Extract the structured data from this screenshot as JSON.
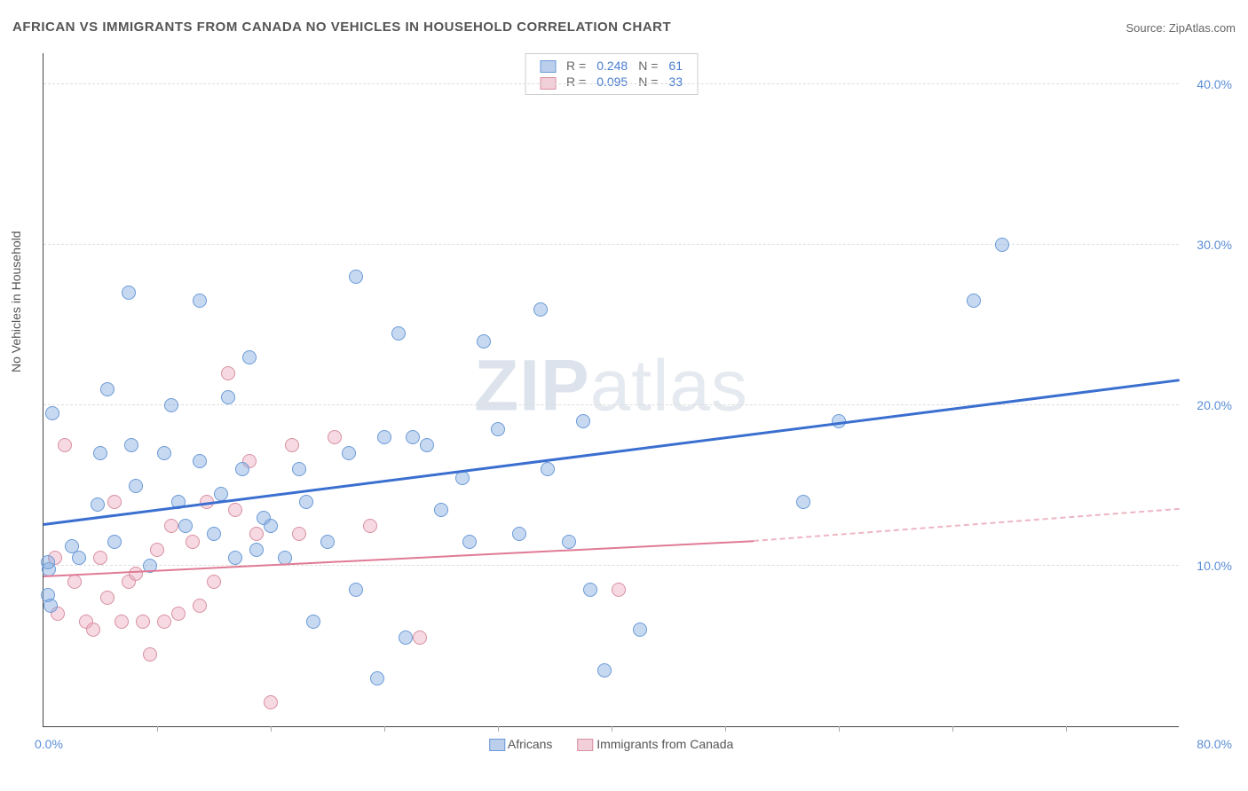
{
  "title": "AFRICAN VS IMMIGRANTS FROM CANADA NO VEHICLES IN HOUSEHOLD CORRELATION CHART",
  "source_label": "Source: ZipAtlas.com",
  "y_axis_label": "No Vehicles in Household",
  "watermark": {
    "bold": "ZIP",
    "rest": "atlas"
  },
  "chart": {
    "type": "scatter",
    "x_range": [
      0,
      80
    ],
    "y_range": [
      0,
      42
    ],
    "y_ticks": [
      10,
      20,
      30,
      40
    ],
    "y_tick_labels": [
      "10.0%",
      "20.0%",
      "30.0%",
      "40.0%"
    ],
    "x_ticks": [
      8,
      16,
      24,
      32,
      40,
      48,
      56,
      64,
      72
    ],
    "x_min_label": "0.0%",
    "x_max_label": "80.0%",
    "marker_radius": 8,
    "background_color": "#ffffff",
    "grid_color": "#dddddd",
    "axis_color": "#444444",
    "tick_label_color": "#5a8dd6"
  },
  "legend_top": {
    "rows": [
      {
        "swatch": "blue",
        "r_label": "R =",
        "r_value": "0.248",
        "n_label": "N =",
        "n_value": "61"
      },
      {
        "swatch": "pink",
        "r_label": "R =",
        "r_value": "0.095",
        "n_label": "N =",
        "n_value": "33"
      }
    ]
  },
  "legend_bottom": {
    "items": [
      {
        "swatch": "blue",
        "label": "Africans"
      },
      {
        "swatch": "pink",
        "label": "Immigrants from Canada"
      }
    ]
  },
  "series": {
    "blue": {
      "fill": "rgba(130,170,225,0.45)",
      "stroke": "#6a9ad8",
      "points": [
        [
          0.3,
          8.2
        ],
        [
          0.4,
          9.8
        ],
        [
          0.3,
          10.2
        ],
        [
          0.6,
          19.5
        ],
        [
          2.0,
          11.2
        ],
        [
          3.8,
          13.8
        ],
        [
          4.5,
          21.0
        ],
        [
          4.0,
          17.0
        ],
        [
          6.0,
          27.0
        ],
        [
          6.2,
          17.5
        ],
        [
          6.5,
          15.0
        ],
        [
          8.5,
          17.0
        ],
        [
          9.5,
          14.0
        ],
        [
          10.0,
          12.5
        ],
        [
          11.0,
          26.5
        ],
        [
          11.0,
          16.5
        ],
        [
          12.5,
          14.5
        ],
        [
          13.0,
          20.5
        ],
        [
          13.5,
          10.5
        ],
        [
          14.0,
          16.0
        ],
        [
          14.5,
          23.0
        ],
        [
          15.0,
          11.0
        ],
        [
          15.5,
          13.0
        ],
        [
          17.0,
          10.5
        ],
        [
          18.0,
          16.0
        ],
        [
          18.5,
          14.0
        ],
        [
          20.0,
          11.5
        ],
        [
          22.0,
          28.0
        ],
        [
          22.0,
          8.5
        ],
        [
          24.0,
          18.0
        ],
        [
          23.5,
          3.0
        ],
        [
          25.0,
          24.5
        ],
        [
          25.5,
          5.5
        ],
        [
          26.0,
          18.0
        ],
        [
          27.0,
          17.5
        ],
        [
          28.0,
          13.5
        ],
        [
          29.5,
          15.5
        ],
        [
          30.0,
          11.5
        ],
        [
          31.0,
          24.0
        ],
        [
          32.0,
          18.5
        ],
        [
          33.5,
          12.0
        ],
        [
          35.0,
          26.0
        ],
        [
          35.5,
          16.0
        ],
        [
          37.0,
          11.5
        ],
        [
          38.5,
          8.5
        ],
        [
          39.5,
          3.5
        ],
        [
          42.0,
          6.0
        ],
        [
          38.0,
          19.0
        ],
        [
          53.5,
          14.0
        ],
        [
          56.0,
          19.0
        ],
        [
          65.5,
          26.5
        ],
        [
          67.5,
          30.0
        ],
        [
          0.5,
          7.5
        ],
        [
          2.5,
          10.5
        ],
        [
          5.0,
          11.5
        ],
        [
          7.5,
          10.0
        ],
        [
          9.0,
          20.0
        ],
        [
          12.0,
          12.0
        ],
        [
          16.0,
          12.5
        ],
        [
          19.0,
          6.5
        ],
        [
          21.5,
          17.0
        ]
      ],
      "trend": {
        "x1": 0,
        "y1": 12.5,
        "x2": 80,
        "y2": 21.5,
        "color": "#3a6fd0",
        "width": 3
      }
    },
    "pink": {
      "fill": "rgba(235,170,190,0.45)",
      "stroke": "#d890a0",
      "points": [
        [
          0.8,
          10.5
        ],
        [
          1.0,
          7.0
        ],
        [
          1.5,
          17.5
        ],
        [
          2.2,
          9.0
        ],
        [
          3.0,
          6.5
        ],
        [
          3.5,
          6.0
        ],
        [
          4.0,
          10.5
        ],
        [
          4.5,
          8.0
        ],
        [
          5.0,
          14.0
        ],
        [
          5.5,
          6.5
        ],
        [
          6.0,
          9.0
        ],
        [
          6.5,
          9.5
        ],
        [
          7.0,
          6.5
        ],
        [
          7.5,
          4.5
        ],
        [
          8.0,
          11.0
        ],
        [
          8.5,
          6.5
        ],
        [
          9.0,
          12.5
        ],
        [
          9.5,
          7.0
        ],
        [
          10.5,
          11.5
        ],
        [
          11.0,
          7.5
        ],
        [
          11.5,
          14.0
        ],
        [
          12.0,
          9.0
        ],
        [
          13.0,
          22.0
        ],
        [
          13.5,
          13.5
        ],
        [
          14.5,
          16.5
        ],
        [
          15.0,
          12.0
        ],
        [
          16.0,
          1.5
        ],
        [
          17.5,
          17.5
        ],
        [
          18.0,
          12.0
        ],
        [
          20.5,
          18.0
        ],
        [
          23.0,
          12.5
        ],
        [
          26.5,
          5.5
        ],
        [
          40.5,
          8.5
        ]
      ],
      "trend_solid": {
        "x1": 0,
        "y1": 9.3,
        "x2": 50,
        "y2": 11.5,
        "color": "#e07a95",
        "width": 2
      },
      "trend_dash": {
        "x1": 50,
        "y1": 11.5,
        "x2": 80,
        "y2": 13.5,
        "color": "#eeb5c2",
        "width": 2
      }
    }
  }
}
